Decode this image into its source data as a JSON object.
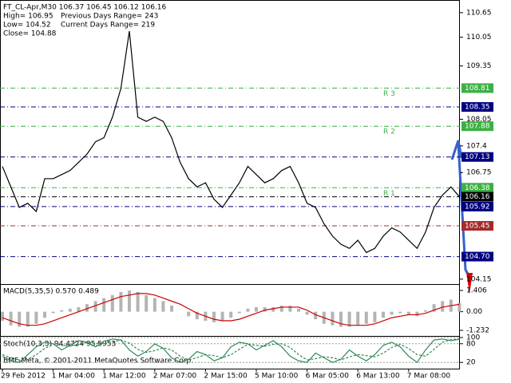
{
  "chart_data": [
    {
      "type": "line",
      "title": "FT_CL-Apr,M30  106.37 106.45 106.12 106.16",
      "info": [
        "High= 106.95",
        "Previous Days Range= 243",
        "Low= 104.52",
        "Current Days Range= 219",
        "Close= 104.88"
      ],
      "footer": "BMF-Meta, © 2001-2011 MetaQuotes Software Corp.",
      "categories": [
        "29 Feb 2012",
        null,
        null,
        null,
        null,
        null,
        "1 Mar 04:00",
        null,
        null,
        null,
        null,
        null,
        "1 Mar 12:00",
        null,
        null,
        null,
        null,
        null,
        "2 Mar 07:00",
        null,
        null,
        null,
        null,
        null,
        "2 Mar 15:00",
        null,
        null,
        null,
        null,
        null,
        "5 Mar 10:00",
        null,
        null,
        null,
        null,
        null,
        "6 Mar 05:00",
        null,
        null,
        null,
        null,
        null,
        "6 Mar 13:00",
        null,
        null,
        null,
        null,
        null,
        "7 Mar 08:00",
        null,
        null,
        null,
        null,
        null,
        null
      ],
      "values": [
        106.9,
        106.4,
        105.9,
        106.0,
        105.8,
        106.6,
        106.6,
        106.7,
        106.8,
        107.0,
        107.2,
        107.5,
        107.6,
        108.1,
        108.8,
        110.2,
        108.1,
        108.0,
        108.1,
        108.0,
        107.6,
        107.0,
        106.6,
        106.4,
        106.5,
        106.1,
        105.9,
        106.2,
        106.5,
        106.9,
        106.7,
        106.5,
        106.6,
        106.8,
        106.9,
        106.5,
        106.0,
        105.9,
        105.5,
        105.2,
        105.0,
        104.9,
        105.1,
        104.8,
        104.9,
        105.2,
        105.4,
        105.3,
        105.1,
        104.9,
        105.3,
        105.9,
        106.2,
        106.4,
        106.16
      ],
      "color": "#000000",
      "ylim": [
        104.03,
        110.92
      ],
      "yticks": [
        110.65,
        110.05,
        109.35,
        108.05,
        107.4,
        106.75,
        104.15
      ],
      "levels": [
        {
          "value": 108.81,
          "color": "#3cb043",
          "tag": "R 3"
        },
        {
          "value": 108.35,
          "color": "#000080"
        },
        {
          "value": 107.88,
          "color": "#3cb043",
          "tag": "R 2"
        },
        {
          "value": 107.13,
          "color": "#000080"
        },
        {
          "value": 106.38,
          "color": "#3cb043",
          "tag": "R 1"
        },
        {
          "value": 106.16,
          "color": "#000000"
        },
        {
          "value": 105.92,
          "color": "#000080"
        },
        {
          "value": 105.45,
          "color": "#a52a2a"
        },
        {
          "value": 104.7,
          "label": "104.70",
          "color": "#000080"
        }
      ]
    },
    {
      "type": "bar",
      "title": "MACD(5,35,5) 0.570 0.489",
      "values": [
        -0.6,
        -0.9,
        -1.0,
        -1.0,
        -0.8,
        -0.4,
        -0.1,
        0.1,
        0.2,
        0.3,
        0.5,
        0.7,
        0.9,
        1.1,
        1.3,
        1.4,
        1.3,
        1.1,
        0.9,
        0.7,
        0.4,
        0.0,
        -0.3,
        -0.5,
        -0.6,
        -0.7,
        -0.6,
        -0.4,
        -0.1,
        0.2,
        0.3,
        0.3,
        0.3,
        0.4,
        0.4,
        0.2,
        -0.2,
        -0.5,
        -0.8,
        -0.9,
        -1.0,
        -1.0,
        -0.9,
        -0.8,
        -0.7,
        -0.4,
        -0.2,
        -0.1,
        -0.2,
        -0.3,
        0.1,
        0.5,
        0.7,
        0.8,
        0.57
      ],
      "signal": [
        -0.4,
        -0.6,
        -0.8,
        -0.9,
        -0.9,
        -0.8,
        -0.6,
        -0.4,
        -0.2,
        0.0,
        0.2,
        0.4,
        0.6,
        0.8,
        1.0,
        1.1,
        1.2,
        1.2,
        1.1,
        0.9,
        0.7,
        0.5,
        0.2,
        -0.1,
        -0.3,
        -0.5,
        -0.6,
        -0.6,
        -0.5,
        -0.3,
        -0.1,
        0.1,
        0.2,
        0.3,
        0.3,
        0.3,
        0.1,
        -0.2,
        -0.4,
        -0.6,
        -0.8,
        -0.9,
        -0.9,
        -0.9,
        -0.8,
        -0.6,
        -0.4,
        -0.3,
        -0.2,
        -0.2,
        -0.1,
        0.1,
        0.3,
        0.4,
        0.489
      ],
      "color": "#b4b4b4",
      "signal_color": "#cc0000",
      "ylim": [
        -1.549,
        1.775
      ],
      "yticks": [
        1.406,
        {
          "value": 0,
          "label": "0.00"
        },
        -1.232
      ]
    },
    {
      "type": "line",
      "title": "Stoch(10,3,3) 94.4724 95.5953",
      "values": [
        40,
        25,
        20,
        45,
        70,
        85,
        80,
        60,
        75,
        90,
        85,
        70,
        88,
        95,
        92,
        60,
        40,
        55,
        80,
        65,
        35,
        20,
        30,
        55,
        45,
        25,
        35,
        70,
        85,
        80,
        60,
        75,
        90,
        70,
        40,
        25,
        20,
        50,
        35,
        20,
        30,
        60,
        40,
        25,
        45,
        75,
        85,
        70,
        40,
        20,
        60,
        92,
        95,
        90,
        94.4724
      ],
      "signal": [
        45,
        35,
        28,
        30,
        45,
        65,
        78,
        75,
        72,
        78,
        84,
        82,
        80,
        85,
        92,
        82,
        62,
        52,
        58,
        67,
        60,
        40,
        28,
        35,
        45,
        42,
        35,
        45,
        62,
        78,
        75,
        72,
        78,
        80,
        68,
        45,
        28,
        32,
        38,
        35,
        28,
        38,
        45,
        42,
        38,
        50,
        68,
        78,
        65,
        45,
        40,
        62,
        85,
        93,
        95.5953
      ],
      "color": "#2e8b57",
      "signal_color": "#2e8b57",
      "ylim": [
        0,
        100
      ],
      "yticks": [
        100,
        80,
        20
      ]
    }
  ]
}
